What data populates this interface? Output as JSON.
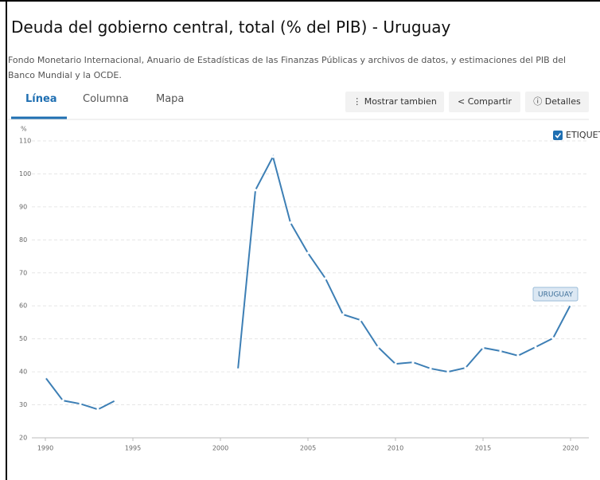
{
  "chart_data": {
    "type": "line",
    "title": "Deuda del gobierno central, total (% del PIB) - Uruguay",
    "subtitle": "Fondo Monetario Internacional, Anuario de Estadísticas de las Finanzas Públicas y archivos de datos, y estimaciones del PIB del Banco Mundial y la OCDE.",
    "y_axis_label": "%",
    "x": [
      1990,
      1991,
      1992,
      1993,
      1994,
      1995,
      1996,
      1997,
      1998,
      1999,
      2000,
      2001,
      2002,
      2003,
      2004,
      2005,
      2006,
      2007,
      2008,
      2009,
      2010,
      2011,
      2012,
      2013,
      2014,
      2015,
      2016,
      2017,
      2018,
      2019,
      2020
    ],
    "series": [
      {
        "name": "URUGUAY",
        "color": "#3d7fb5",
        "values": [
          38.3,
          31.3,
          30.3,
          28.6,
          31.3,
          null,
          null,
          null,
          null,
          null,
          null,
          40.7,
          95.1,
          105.2,
          85.2,
          76,
          68.3,
          57.4,
          55.7,
          47.5,
          42.4,
          42.9,
          41,
          40,
          41.2,
          47.3,
          46.3,
          44.9,
          47.5,
          50.2,
          60.3
        ]
      }
    ],
    "xlim": [
      1990,
      2020
    ],
    "xticks": [
      1990,
      1995,
      2000,
      2005,
      2010,
      2015,
      2020
    ],
    "ylim": [
      20,
      110
    ],
    "yticks": [
      20,
      30,
      40,
      50,
      60,
      70,
      80,
      90,
      100,
      110
    ],
    "grid": true
  },
  "ui": {
    "tabs": [
      "Línea",
      "Columna",
      "Mapa"
    ],
    "active_tab": 0,
    "buttons": [
      "Mostrar tambien",
      "Compartir",
      "Detalles"
    ],
    "label_toggle": "ETIQUETA"
  }
}
